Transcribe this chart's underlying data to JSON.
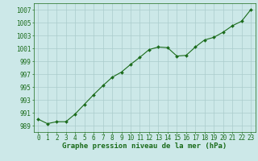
{
  "x": [
    0,
    1,
    2,
    3,
    4,
    5,
    6,
    7,
    8,
    9,
    10,
    11,
    12,
    13,
    14,
    15,
    16,
    17,
    18,
    19,
    20,
    21,
    22,
    23
  ],
  "y": [
    990.0,
    989.3,
    989.6,
    989.6,
    990.8,
    992.3,
    993.8,
    995.2,
    996.5,
    997.3,
    998.5,
    999.6,
    1000.8,
    1001.2,
    1001.1,
    999.8,
    999.9,
    1001.2,
    1002.3,
    1002.7,
    1003.5,
    1004.5,
    1005.2,
    1007.0
  ],
  "line_color": "#1a6b1a",
  "marker_color": "#1a6b1a",
  "bg_color": "#cce8e8",
  "grid_color": "#aacccc",
  "title": "Graphe pression niveau de la mer (hPa)",
  "ylabel_ticks": [
    989,
    991,
    993,
    995,
    997,
    999,
    1001,
    1003,
    1005,
    1007
  ],
  "xlabel_ticks": [
    0,
    1,
    2,
    3,
    4,
    5,
    6,
    7,
    8,
    9,
    10,
    11,
    12,
    13,
    14,
    15,
    16,
    17,
    18,
    19,
    20,
    21,
    22,
    23
  ],
  "ylim": [
    988.0,
    1008.0
  ],
  "xlim": [
    -0.5,
    23.5
  ],
  "title_fontsize": 6.5,
  "tick_fontsize": 5.5,
  "title_color": "#1a6b1a",
  "tick_color": "#1a6b1a"
}
